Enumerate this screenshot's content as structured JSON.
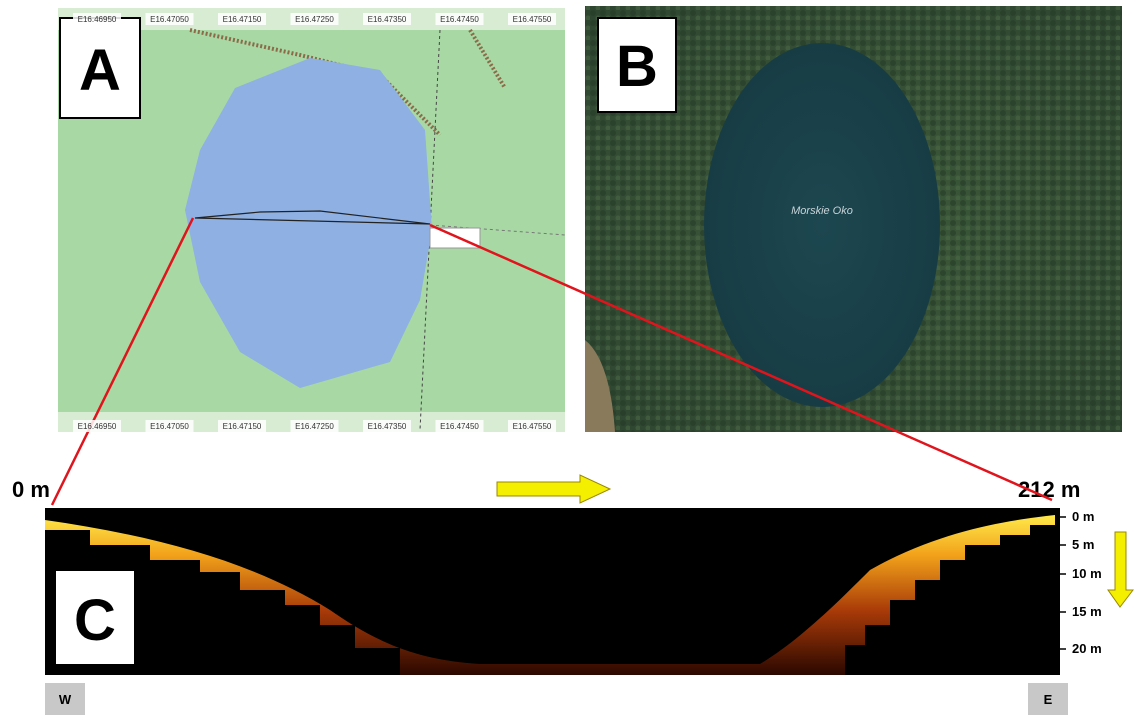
{
  "panel_a": {
    "label": "A",
    "coordinates": [
      "E16.46950",
      "E16.47050",
      "E16.47150",
      "E16.47250",
      "E16.47350",
      "E16.47450",
      "E16.47550"
    ]
  },
  "panel_b": {
    "label": "B",
    "lake_name": "Morskie Oko"
  },
  "panel_c": {
    "label": "C",
    "distance_start": "0 m",
    "distance_end": "212 m",
    "depth_labels": [
      "0 m",
      "5 m",
      "10 m",
      "15 m",
      "20 m"
    ],
    "west": "W",
    "east": "E"
  }
}
